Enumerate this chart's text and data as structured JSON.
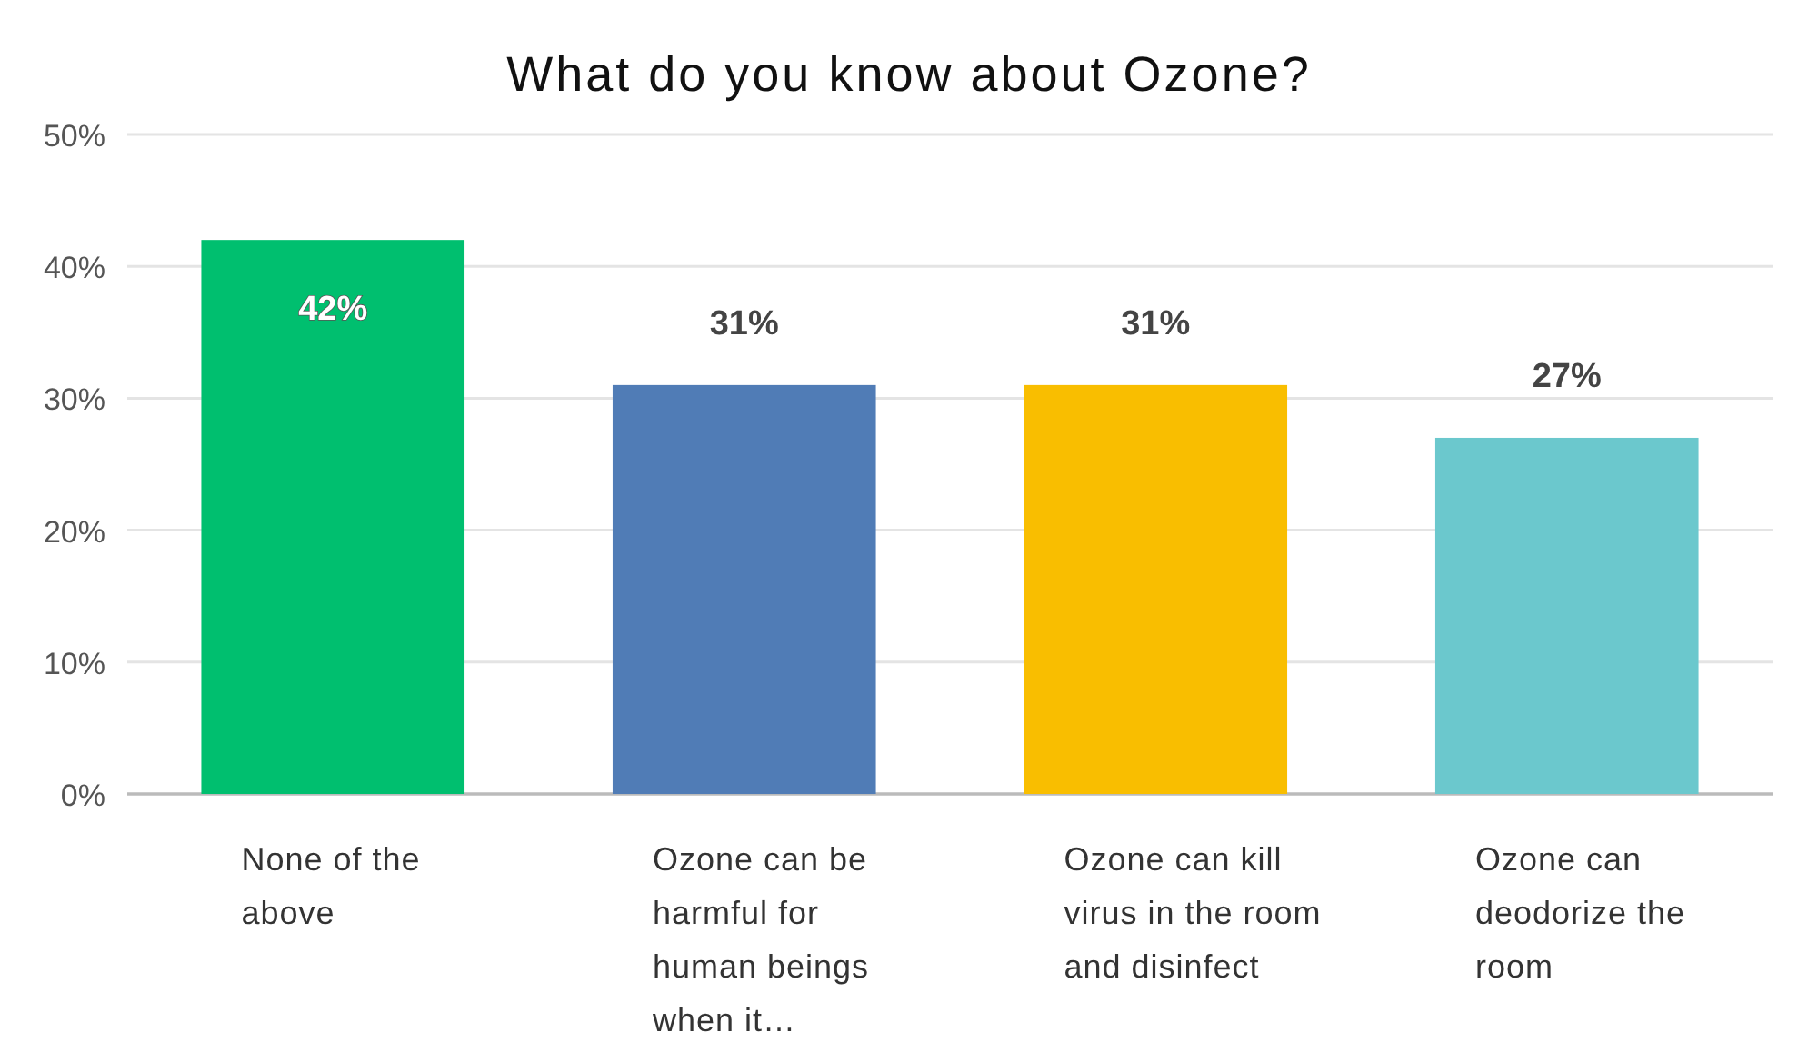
{
  "chart_data": {
    "type": "bar",
    "title": "What do you know about Ozone?",
    "categories": [
      "None of the above",
      "Ozone can be harmful for human beings when it…",
      "Ozone can kill virus in the room and disinfect",
      "Ozone can deodorize the room"
    ],
    "values": [
      42,
      31,
      31,
      27
    ],
    "colors": [
      "#00bf6f",
      "#507cb6",
      "#f9be00",
      "#6bc8cd"
    ],
    "ylim": [
      0,
      50
    ],
    "yticks": [
      {
        "value": 0,
        "label": "0%"
      },
      {
        "value": 10,
        "label": "10%"
      },
      {
        "value": 20,
        "label": "20%"
      },
      {
        "value": 30,
        "label": "30%"
      },
      {
        "value": 40,
        "label": "40%"
      },
      {
        "value": 50,
        "label": "50%"
      }
    ],
    "value_labels": [
      "42%",
      "31%",
      "31%",
      "27%"
    ],
    "grid": "y"
  }
}
